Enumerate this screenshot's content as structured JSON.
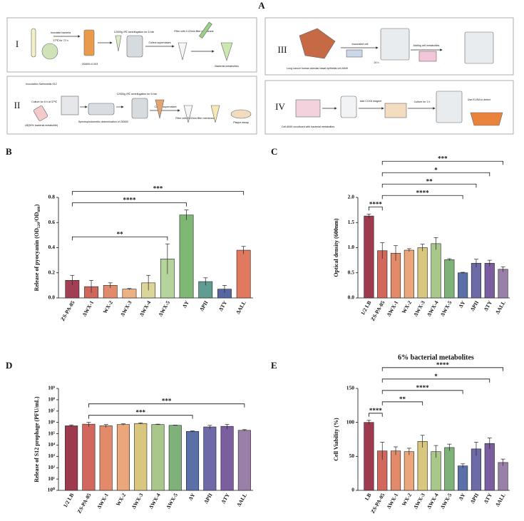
{
  "workflow": {
    "label": "A",
    "panels": [
      {
        "numeral": "I",
        "steps": [
          "Inoculate bacteria",
          "37℃ for 72 h",
          "OD600=0.003",
          "12000g 4℃ centrifugation for 5 min",
          "Collect supernatant",
          "Filter with 0.22mm filter membrane",
          "Bacterial metabolites"
        ]
      },
      {
        "numeral": "II",
        "steps": [
          "Inoculation Salmonella S12",
          "Culture for 6 h at 37℃",
          "LB(50% bacterial metabolite)",
          "Spectrophotometric determination of OD600",
          "12000g 4℃ centrifugation for 5 min",
          "Collect supernatant",
          "Filter with 0.22mm filter membrane",
          "Plaque assay"
        ]
      },
      {
        "numeral": "III",
        "steps": [
          "Long cancer human alveolar basal epithelial cell A549",
          "Inoculated cell",
          "24 h",
          "Adding cell metabolites"
        ]
      },
      {
        "numeral": "IV",
        "steps": [
          "Cell A549 cocultured with bacterial metabolites",
          "Add CCK8 reagent",
          "Culture for 1 h",
          "Use ELISA to detect"
        ]
      }
    ]
  },
  "chart_data": [
    {
      "type": "bar",
      "panel": "B",
      "ylabel": [
        "Release of pyocyanin (OD",
        "520",
        "/OD",
        "600",
        ")"
      ],
      "categories": [
        "ZS-PA-05",
        "ΔWX-1",
        "WX-2",
        "ΔWX-3",
        "ΔWX-4",
        "ΔWX-5",
        "ΔY",
        "ΔPII",
        "ΔTY",
        "ΔALL"
      ],
      "values": [
        0.14,
        0.09,
        0.1,
        0.07,
        0.12,
        0.31,
        0.66,
        0.13,
        0.07,
        0.38
      ],
      "errors": [
        0.04,
        0.05,
        0.02,
        0.005,
        0.06,
        0.12,
        0.04,
        0.03,
        0.03,
        0.03
      ],
      "colors": [
        "#a23f55",
        "#d0675d",
        "#e28a6c",
        "#edb283",
        "#dcd59a",
        "#b4d49b",
        "#7fb775",
        "#5f9c92",
        "#5566a3",
        "#e0795e"
      ],
      "ylim": [
        0,
        0.8
      ],
      "yticks": [
        {
          "value": 0,
          "label": "0.0"
        },
        0.2,
        0.4,
        0.6,
        0.8
      ],
      "brackets": [
        {
          "from": 0,
          "to": 5,
          "label": "**"
        },
        {
          "from": 0,
          "to": 6,
          "label": "****"
        },
        {
          "from": 0,
          "to": 9,
          "label": "***"
        }
      ]
    },
    {
      "type": "bar",
      "panel": "C",
      "ylabel": "Optical density (600nm)",
      "categories": [
        "1/2 LB",
        "ZS-PA-05",
        "ΔWX-1",
        "WX-2",
        "ΔWX-3",
        "ΔWX-4",
        "ΔWX-5",
        "ΔY",
        "ΔPII",
        "ΔTY",
        "ΔALL"
      ],
      "values": [
        1.63,
        0.94,
        0.89,
        0.95,
        1.0,
        1.08,
        0.76,
        0.5,
        0.69,
        0.69,
        0.57
      ],
      "errors": [
        0.04,
        0.16,
        0.15,
        0.03,
        0.07,
        0.12,
        0.02,
        0.01,
        0.08,
        0.06,
        0.05
      ],
      "colors": [
        "#9e3a4d",
        "#d2675e",
        "#e38a6a",
        "#eba77b",
        "#d9c77f",
        "#a9c78b",
        "#7fb17a",
        "#5b6fa8",
        "#6e6aa8",
        "#7b5ea0",
        "#9a7fa8"
      ],
      "ylim": [
        0,
        2.0
      ],
      "yticks": [
        {
          "value": 0,
          "label": "0.0"
        },
        0.5,
        {
          "value": 1,
          "label": "1.0"
        },
        1.5,
        {
          "value": 2,
          "label": "2.0"
        }
      ],
      "brackets": [
        {
          "from": 0,
          "to": 1,
          "label": "****"
        },
        {
          "from": 1,
          "to": 7,
          "label": "****"
        },
        {
          "from": 1,
          "to": 8,
          "label": "**"
        },
        {
          "from": 1,
          "to": 9,
          "label": "*"
        },
        {
          "from": 1,
          "to": 10,
          "label": "***"
        }
      ]
    },
    {
      "type": "bar",
      "panel": "D",
      "log_scale": true,
      "ylabel": "Release of S12 prophage (PFU/mL)",
      "categories": [
        "1/2 LB",
        "ZS-PA-05",
        "ΔWX-1",
        "WX-2",
        "ΔWX-3",
        "ΔWX-4",
        "ΔWX-5",
        "ΔY",
        "ΔPII",
        "ΔTY",
        "ΔALL"
      ],
      "values": [
        500000,
        700000,
        500000,
        650000,
        800000,
        650000,
        550000,
        160000,
        400000,
        450000,
        200000
      ],
      "errors": [
        100000,
        300000,
        150000,
        100000,
        100000,
        50000,
        30000,
        20000,
        150000,
        200000,
        30000
      ],
      "colors": [
        "#9e3a4d",
        "#d2675e",
        "#e38a6a",
        "#eba77b",
        "#d9c77f",
        "#a9c78b",
        "#7fb17a",
        "#5b6fa8",
        "#6e6aa8",
        "#7b5ea0",
        "#9a7fa8"
      ],
      "ylim": [
        1,
        1000000000
      ],
      "yticks": [
        {
          "value": 1,
          "label": "10⁰"
        },
        {
          "value": 10,
          "label": "10¹"
        },
        {
          "value": 100,
          "label": "10²"
        },
        {
          "value": 1000,
          "label": "10³"
        },
        {
          "value": 10000,
          "label": "10⁴"
        },
        {
          "value": 100000,
          "label": "10⁵"
        },
        {
          "value": 1000000,
          "label": "10⁶"
        },
        {
          "value": 10000000,
          "label": "10⁷"
        },
        {
          "value": 100000000,
          "label": "10⁸"
        },
        {
          "value": 1000000000,
          "label": "10⁹"
        }
      ],
      "brackets": [
        {
          "from": 1,
          "to": 7,
          "label": "***"
        },
        {
          "from": 1,
          "to": 10,
          "label": "***"
        }
      ]
    },
    {
      "type": "bar",
      "panel": "E",
      "title": "6% bacterial metabolites",
      "ylabel": "Cell Viability (%)",
      "categories": [
        "LB",
        "ZS-PA-05",
        "ΔWX-1",
        "WX-2",
        "ΔWX-3",
        "ΔWX-4",
        "ΔWX-5",
        "ΔY",
        "ΔPII",
        "ΔTY",
        "ΔALL"
      ],
      "values": [
        100,
        58,
        58,
        57,
        72,
        57,
        63,
        36,
        61,
        69,
        41
      ],
      "errors": [
        3,
        13,
        6,
        5,
        9,
        9,
        5,
        3,
        10,
        8,
        5
      ],
      "colors": [
        "#9e3a4d",
        "#d2675e",
        "#e38a6a",
        "#eba77b",
        "#d9c77f",
        "#a9c78b",
        "#7fb17a",
        "#5b6fa8",
        "#6e6aa8",
        "#7b5ea0",
        "#9a7fa8"
      ],
      "ylim": [
        0,
        150
      ],
      "yticks": [
        0,
        50,
        100,
        150
      ],
      "brackets": [
        {
          "from": 0,
          "to": 1,
          "label": "****"
        },
        {
          "from": 1,
          "to": 4,
          "label": "**"
        },
        {
          "from": 1,
          "to": 7,
          "label": "****"
        },
        {
          "from": 1,
          "to": 9,
          "label": "*"
        },
        {
          "from": 1,
          "to": 10,
          "label": "****"
        }
      ]
    }
  ]
}
